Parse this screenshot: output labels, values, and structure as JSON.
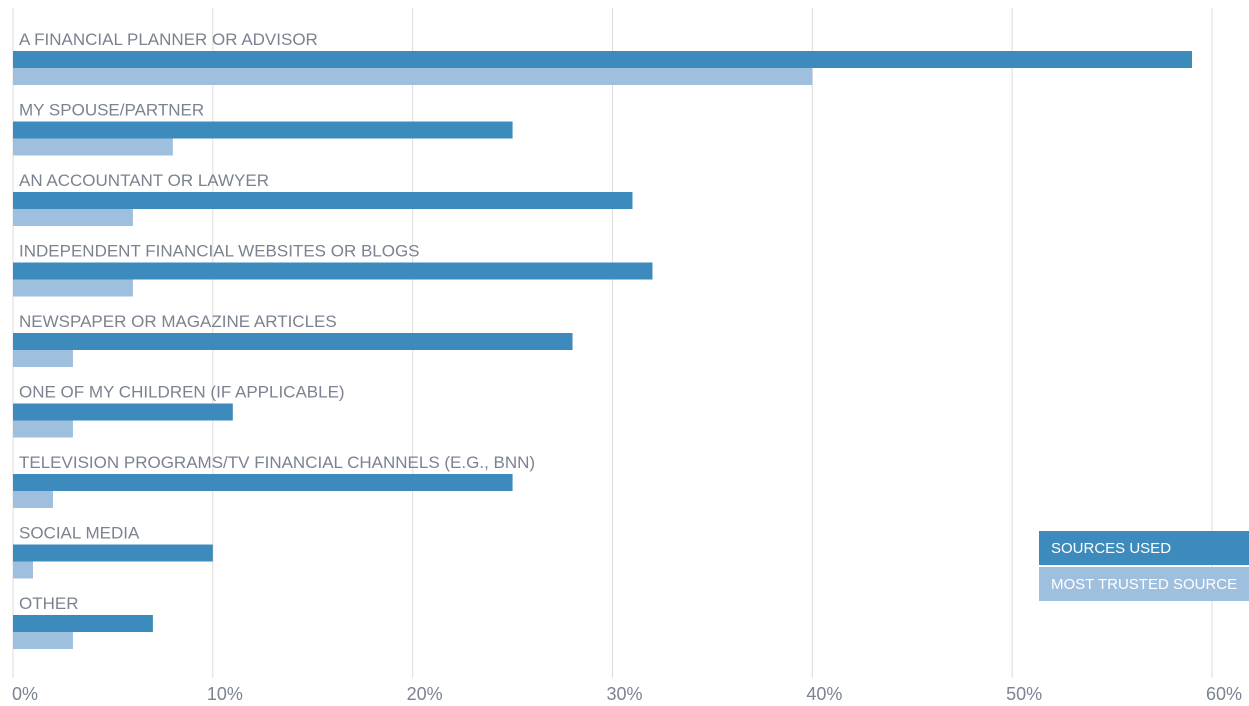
{
  "chart_data": {
    "type": "bar",
    "orientation": "horizontal",
    "categories": [
      "A FINANCIAL PLANNER OR ADVISOR",
      "MY SPOUSE/PARTNER",
      "AN ACCOUNTANT OR LAWYER",
      "INDEPENDENT FINANCIAL WEBSITES OR BLOGS",
      "NEWSPAPER OR MAGAZINE ARTICLES",
      "ONE OF MY CHILDREN (IF APPLICABLE)",
      "TELEVISION PROGRAMS/TV FINANCIAL CHANNELS (E.G., BNN)",
      "SOCIAL MEDIA",
      "OTHER"
    ],
    "series": [
      {
        "name": "SOURCES USED",
        "color": "#3d8bbd",
        "values": [
          59,
          25,
          31,
          32,
          28,
          11,
          25,
          10,
          7
        ]
      },
      {
        "name": "MOST TRUSTED SOURCE",
        "color": "#9fbfdf",
        "values": [
          40,
          8,
          6,
          6,
          3,
          3,
          2,
          1,
          3
        ]
      }
    ],
    "x_ticks": [
      "0%",
      "10%",
      "20%",
      "30%",
      "40%",
      "50%",
      "60%"
    ],
    "xlim": [
      0,
      60
    ],
    "grid": "vertical",
    "legend_position": "bottom-right",
    "title": "",
    "xlabel": "",
    "ylabel": ""
  }
}
